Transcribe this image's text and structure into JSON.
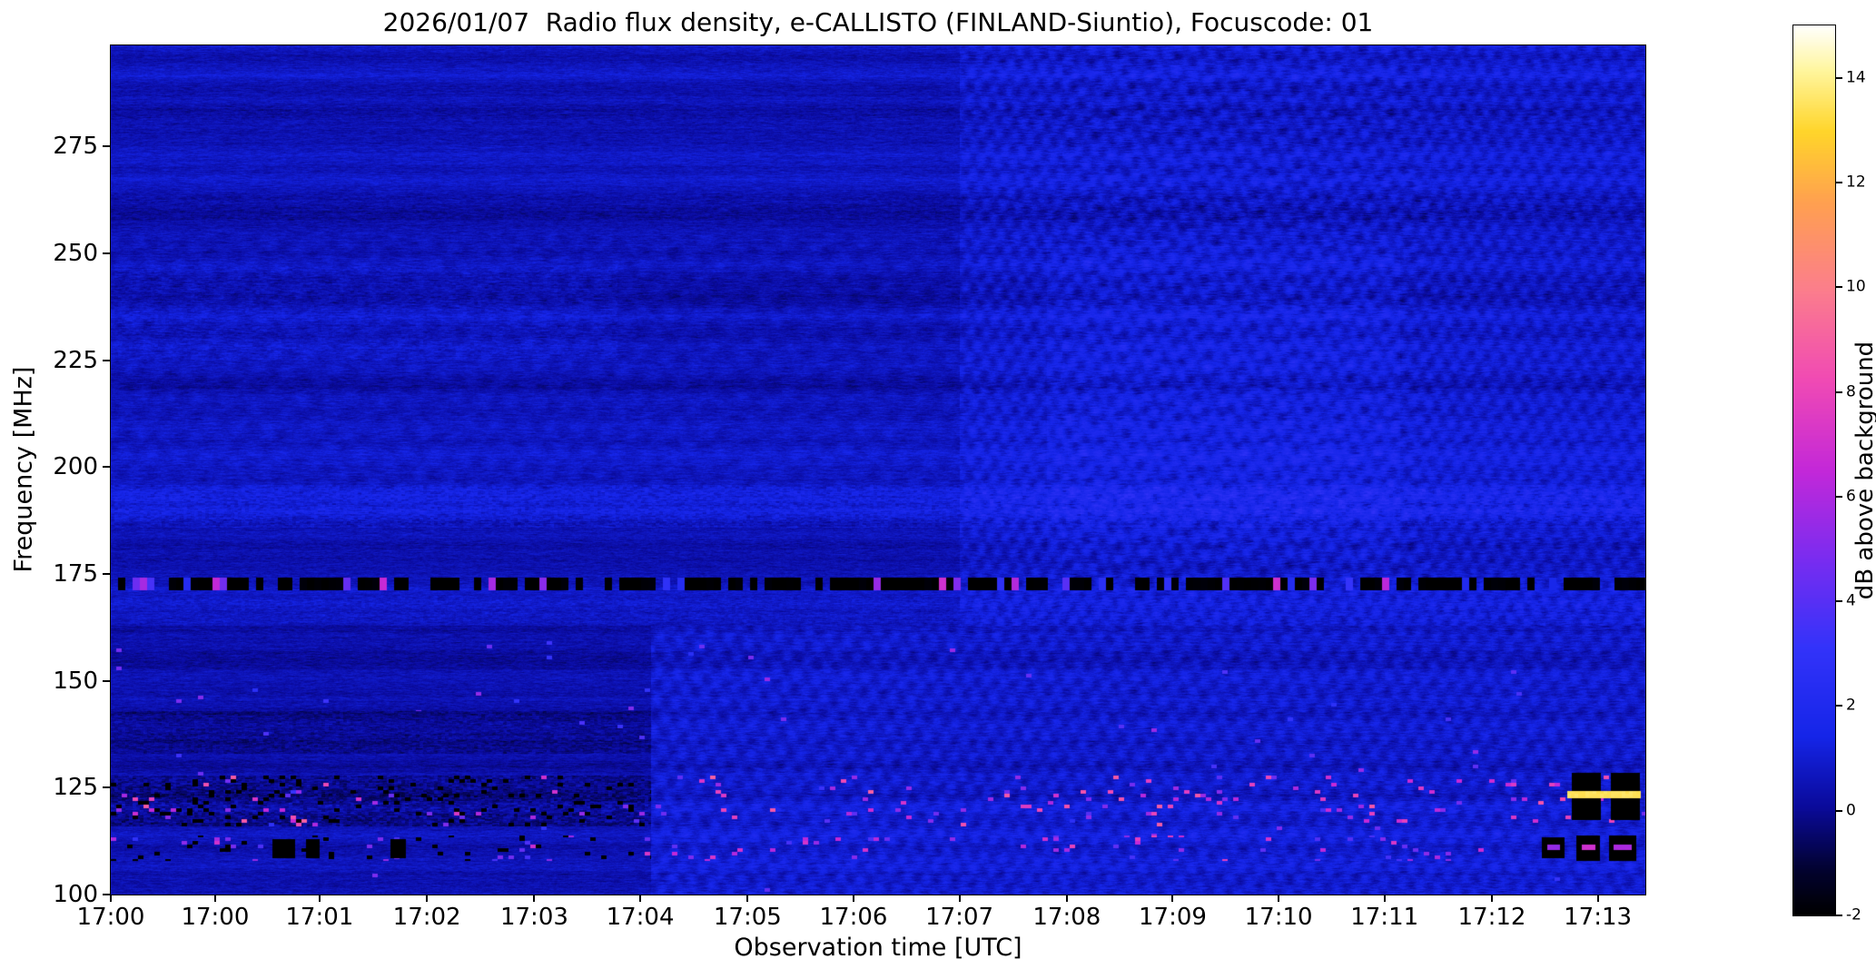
{
  "chart_data": {
    "type": "heatmap",
    "title": "2026/01/07  Radio flux density, e-CALLISTO (FINLAND-Siuntio), Focuscode: 01",
    "date": "2026/01/07",
    "instrument": "e-CALLISTO",
    "station": "FINLAND-Siuntio",
    "focuscode": "01",
    "xlabel": "Observation time [UTC]",
    "ylabel": "Frequency [MHz]",
    "colorbar_label": "dB above background",
    "x_ticks": [
      {
        "pos": 0.0,
        "label": "17:00"
      },
      {
        "pos": 0.068,
        "label": "17:00"
      },
      {
        "pos": 0.136,
        "label": "17:01"
      },
      {
        "pos": 0.206,
        "label": "17:02"
      },
      {
        "pos": 0.276,
        "label": "17:03"
      },
      {
        "pos": 0.345,
        "label": "17:04"
      },
      {
        "pos": 0.415,
        "label": "17:05"
      },
      {
        "pos": 0.484,
        "label": "17:06"
      },
      {
        "pos": 0.553,
        "label": "17:07"
      },
      {
        "pos": 0.623,
        "label": "17:08"
      },
      {
        "pos": 0.692,
        "label": "17:09"
      },
      {
        "pos": 0.761,
        "label": "17:10"
      },
      {
        "pos": 0.83,
        "label": "17:11"
      },
      {
        "pos": 0.9,
        "label": "17:12"
      },
      {
        "pos": 0.969,
        "label": "17:13"
      }
    ],
    "y_ticks": [
      275,
      250,
      225,
      200,
      175,
      150,
      125,
      100
    ],
    "freq_range": [
      100,
      298.6
    ],
    "value_range": [
      -2,
      15
    ],
    "colorbar_ticks": [
      -2,
      0,
      2,
      4,
      6,
      8,
      10,
      12,
      14
    ],
    "colormap": [
      [
        0.0,
        "#000000"
      ],
      [
        0.05,
        "#020230"
      ],
      [
        0.12,
        "#0a0a9a"
      ],
      [
        0.2,
        "#1525e8"
      ],
      [
        0.3,
        "#3333fa"
      ],
      [
        0.4,
        "#7a2cf0"
      ],
      [
        0.5,
        "#c428d8"
      ],
      [
        0.6,
        "#f04ab4"
      ],
      [
        0.7,
        "#fb7d8d"
      ],
      [
        0.8,
        "#ffa050"
      ],
      [
        0.88,
        "#ffd52a"
      ],
      [
        0.95,
        "#fff6a0"
      ],
      [
        1.0,
        "#ffffff"
      ]
    ],
    "base_db": 0.7,
    "features": [
      {
        "type": "region",
        "x": [
          0,
          0.553
        ],
        "f": [
          163,
          299
        ],
        "dv": -0.1
      },
      {
        "type": "region",
        "x": [
          0.553,
          1
        ],
        "f": [
          163,
          299
        ],
        "dv": 0.28
      },
      {
        "type": "region",
        "x": [
          0.352,
          1
        ],
        "f": [
          100,
          163
        ],
        "dv": 0.25
      },
      {
        "type": "region",
        "x": [
          0,
          0.352
        ],
        "f": [
          100,
          163
        ],
        "dv": -0.28
      },
      {
        "type": "region",
        "x": [
          0.61,
          0.84
        ],
        "f": [
          178,
          252
        ],
        "dv": 0.22
      },
      {
        "type": "waves",
        "x": [
          0.553,
          1
        ],
        "f": [
          163,
          299
        ],
        "amp": 0.3,
        "kx": 0.3,
        "ky": 0.22
      },
      {
        "type": "waves",
        "x": [
          0.62,
          0.86
        ],
        "f": [
          170,
          299
        ],
        "amp": 0.22,
        "kx": 0.09,
        "ky": 0.3
      },
      {
        "type": "waves",
        "x": [
          0.352,
          1
        ],
        "f": [
          100,
          163
        ],
        "amp": 0.28,
        "kx": 0.26,
        "ky": 0.2
      },
      {
        "type": "waves",
        "x": [
          0,
          0.553
        ],
        "f": [
          195,
          255
        ],
        "amp": 0.14,
        "kx": 0.17,
        "ky": 0.15
      },
      {
        "type": "band",
        "x": [
          0,
          1
        ],
        "f": [
          186,
          196
        ],
        "dv": 0.4,
        "noise": 0.35
      },
      {
        "type": "band",
        "x": [
          0,
          1
        ],
        "f": [
          163,
          170
        ],
        "dv": 0.22,
        "noise": 0.2
      },
      {
        "type": "band",
        "x": [
          0,
          0.352
        ],
        "f": [
          133,
          143
        ],
        "dv": -0.4,
        "noise": 0.3
      },
      {
        "type": "band",
        "x": [
          0,
          0.352
        ],
        "f": [
          116,
          128
        ],
        "dv": -0.45,
        "noise": 0.5
      },
      {
        "type": "band",
        "x": [
          0,
          0.33
        ],
        "f": [
          225,
          247
        ],
        "dv": 0.18,
        "noise": 0.22
      },
      {
        "type": "band",
        "x": [
          0,
          1
        ],
        "f": [
          258,
          264
        ],
        "dv": -0.18,
        "noise": 0.15
      },
      {
        "type": "band",
        "x": [
          0,
          1
        ],
        "f": [
          280,
          285
        ],
        "dv": -0.15,
        "noise": 0.12
      },
      {
        "type": "rfi",
        "x": [
          0,
          1
        ],
        "f": [
          171.3,
          174.3
        ],
        "dark": -2.3,
        "bright": [
          1.5,
          7
        ]
      },
      {
        "type": "speckles",
        "x": [
          0,
          0.352
        ],
        "f": [
          116,
          128
        ],
        "density": 0.1,
        "v": [
          -2.6,
          -2.2
        ]
      },
      {
        "type": "speckles",
        "x": [
          0,
          1
        ],
        "f": [
          116,
          128
        ],
        "density": 0.04,
        "v": [
          4,
          9
        ]
      },
      {
        "type": "speckles",
        "x": [
          0,
          1
        ],
        "f": [
          108,
          114
        ],
        "density": 0.035,
        "v": [
          3.5,
          8
        ]
      },
      {
        "type": "speckles",
        "x": [
          0,
          0.352
        ],
        "f": [
          108,
          114
        ],
        "density": 0.06,
        "v": [
          -2.6,
          -2.2
        ]
      },
      {
        "type": "speckles",
        "x": [
          0,
          1
        ],
        "f": [
          100,
          160
        ],
        "density": 0.004,
        "v": [
          2.5,
          5.5
        ]
      },
      {
        "type": "block",
        "x": [
          0.105,
          0.12
        ],
        "f": [
          108.5,
          113
        ],
        "v": -2.3
      },
      {
        "type": "block",
        "x": [
          0.127,
          0.136
        ],
        "f": [
          108.5,
          113
        ],
        "v": -2.3
      },
      {
        "type": "block",
        "x": [
          0.182,
          0.192
        ],
        "f": [
          108.5,
          113
        ],
        "v": -2.3
      },
      {
        "type": "block",
        "x": [
          0.932,
          0.947
        ],
        "f": [
          108.5,
          113.5
        ],
        "v": -2.3
      },
      {
        "type": "block",
        "x": [
          0.955,
          0.97
        ],
        "f": [
          108,
          114
        ],
        "v": -2.3
      },
      {
        "type": "block",
        "x": [
          0.976,
          0.994
        ],
        "f": [
          108,
          114
        ],
        "v": -2.3
      },
      {
        "type": "block",
        "x": [
          0.936,
          0.944
        ],
        "f": [
          110.6,
          111.8
        ],
        "v": 5.5
      },
      {
        "type": "block",
        "x": [
          0.958,
          0.967
        ],
        "f": [
          110.6,
          111.8
        ],
        "v": 7
      },
      {
        "type": "block",
        "x": [
          0.979,
          0.991
        ],
        "f": [
          110.6,
          111.8
        ],
        "v": 6
      },
      {
        "type": "block",
        "x": [
          0.952,
          0.971
        ],
        "f": [
          117.5,
          128.5
        ],
        "v": -2.3
      },
      {
        "type": "block",
        "x": [
          0.977,
          0.996
        ],
        "f": [
          117.5,
          128.5
        ],
        "v": -2.3
      },
      {
        "type": "block",
        "x": [
          0.949,
          0.997
        ],
        "f": [
          122.6,
          124.4
        ],
        "v": 13.5
      }
    ]
  }
}
